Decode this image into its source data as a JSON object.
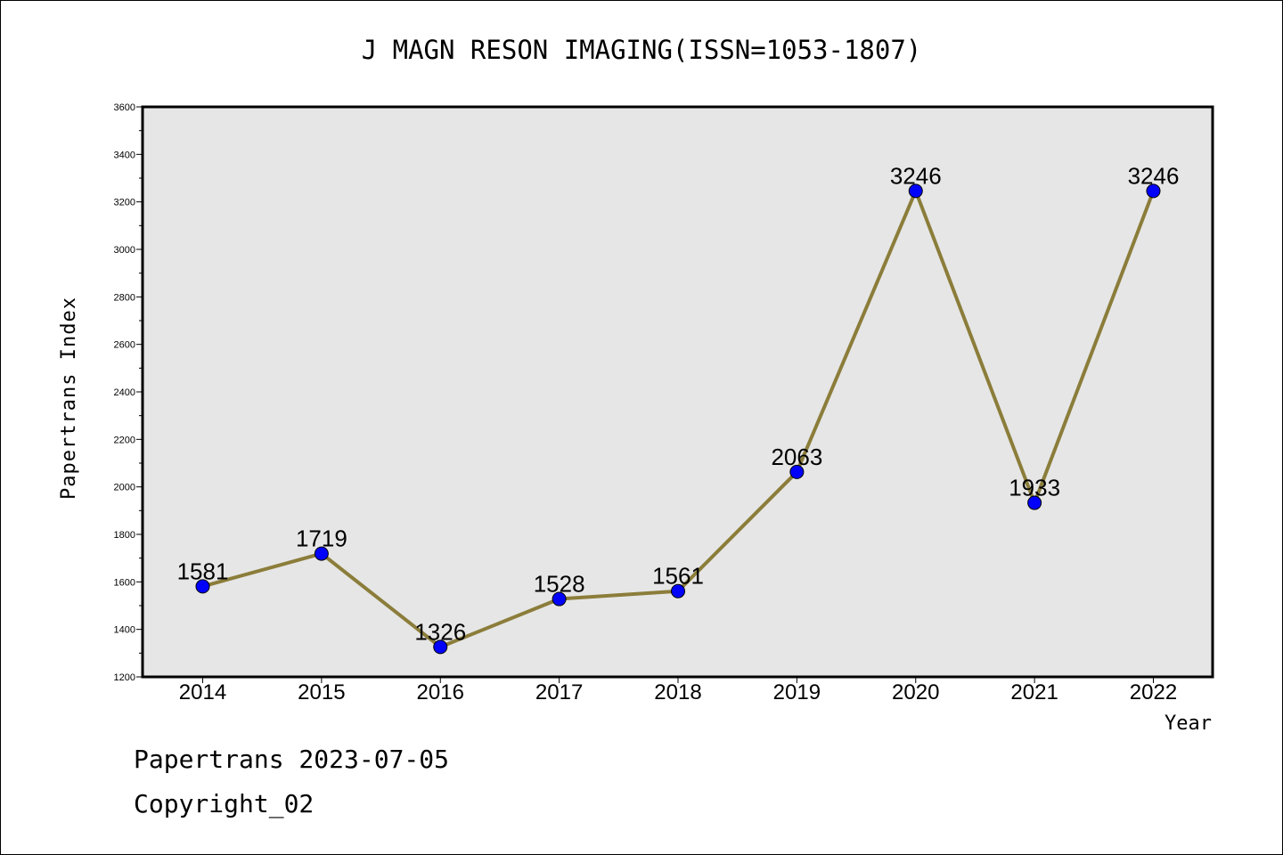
{
  "footer": {
    "line1": "Papertrans 2023-07-05",
    "line2": "Copyright_02"
  },
  "chart_data": {
    "type": "line",
    "title": "J MAGN RESON IMAGING(ISSN=1053-1807)",
    "xlabel": "Year",
    "ylabel": "Papertrans Index",
    "categories": [
      "2014",
      "2015",
      "2016",
      "2017",
      "2018",
      "2019",
      "2020",
      "2021",
      "2022"
    ],
    "series": [
      {
        "values": [
          1581,
          1719,
          1326,
          1528,
          1561,
          2063,
          3246,
          1933,
          3246
        ],
        "data_labels": [
          "1581",
          "1719",
          "1326",
          "1528",
          "1561",
          "2063",
          "3246",
          "1933",
          "3246"
        ]
      }
    ],
    "ylim": [
      1200,
      3600
    ],
    "yticks": [
      "1200",
      "1400",
      "1600",
      "1800",
      "2000",
      "2200",
      "2400",
      "2600",
      "2800",
      "3000",
      "3200",
      "3400",
      "3600"
    ],
    "grid": false,
    "legend": "none",
    "colors": {
      "line": "#8b7d3a",
      "marker": "#0000ff",
      "plot_background": "#e6e6e6"
    }
  }
}
